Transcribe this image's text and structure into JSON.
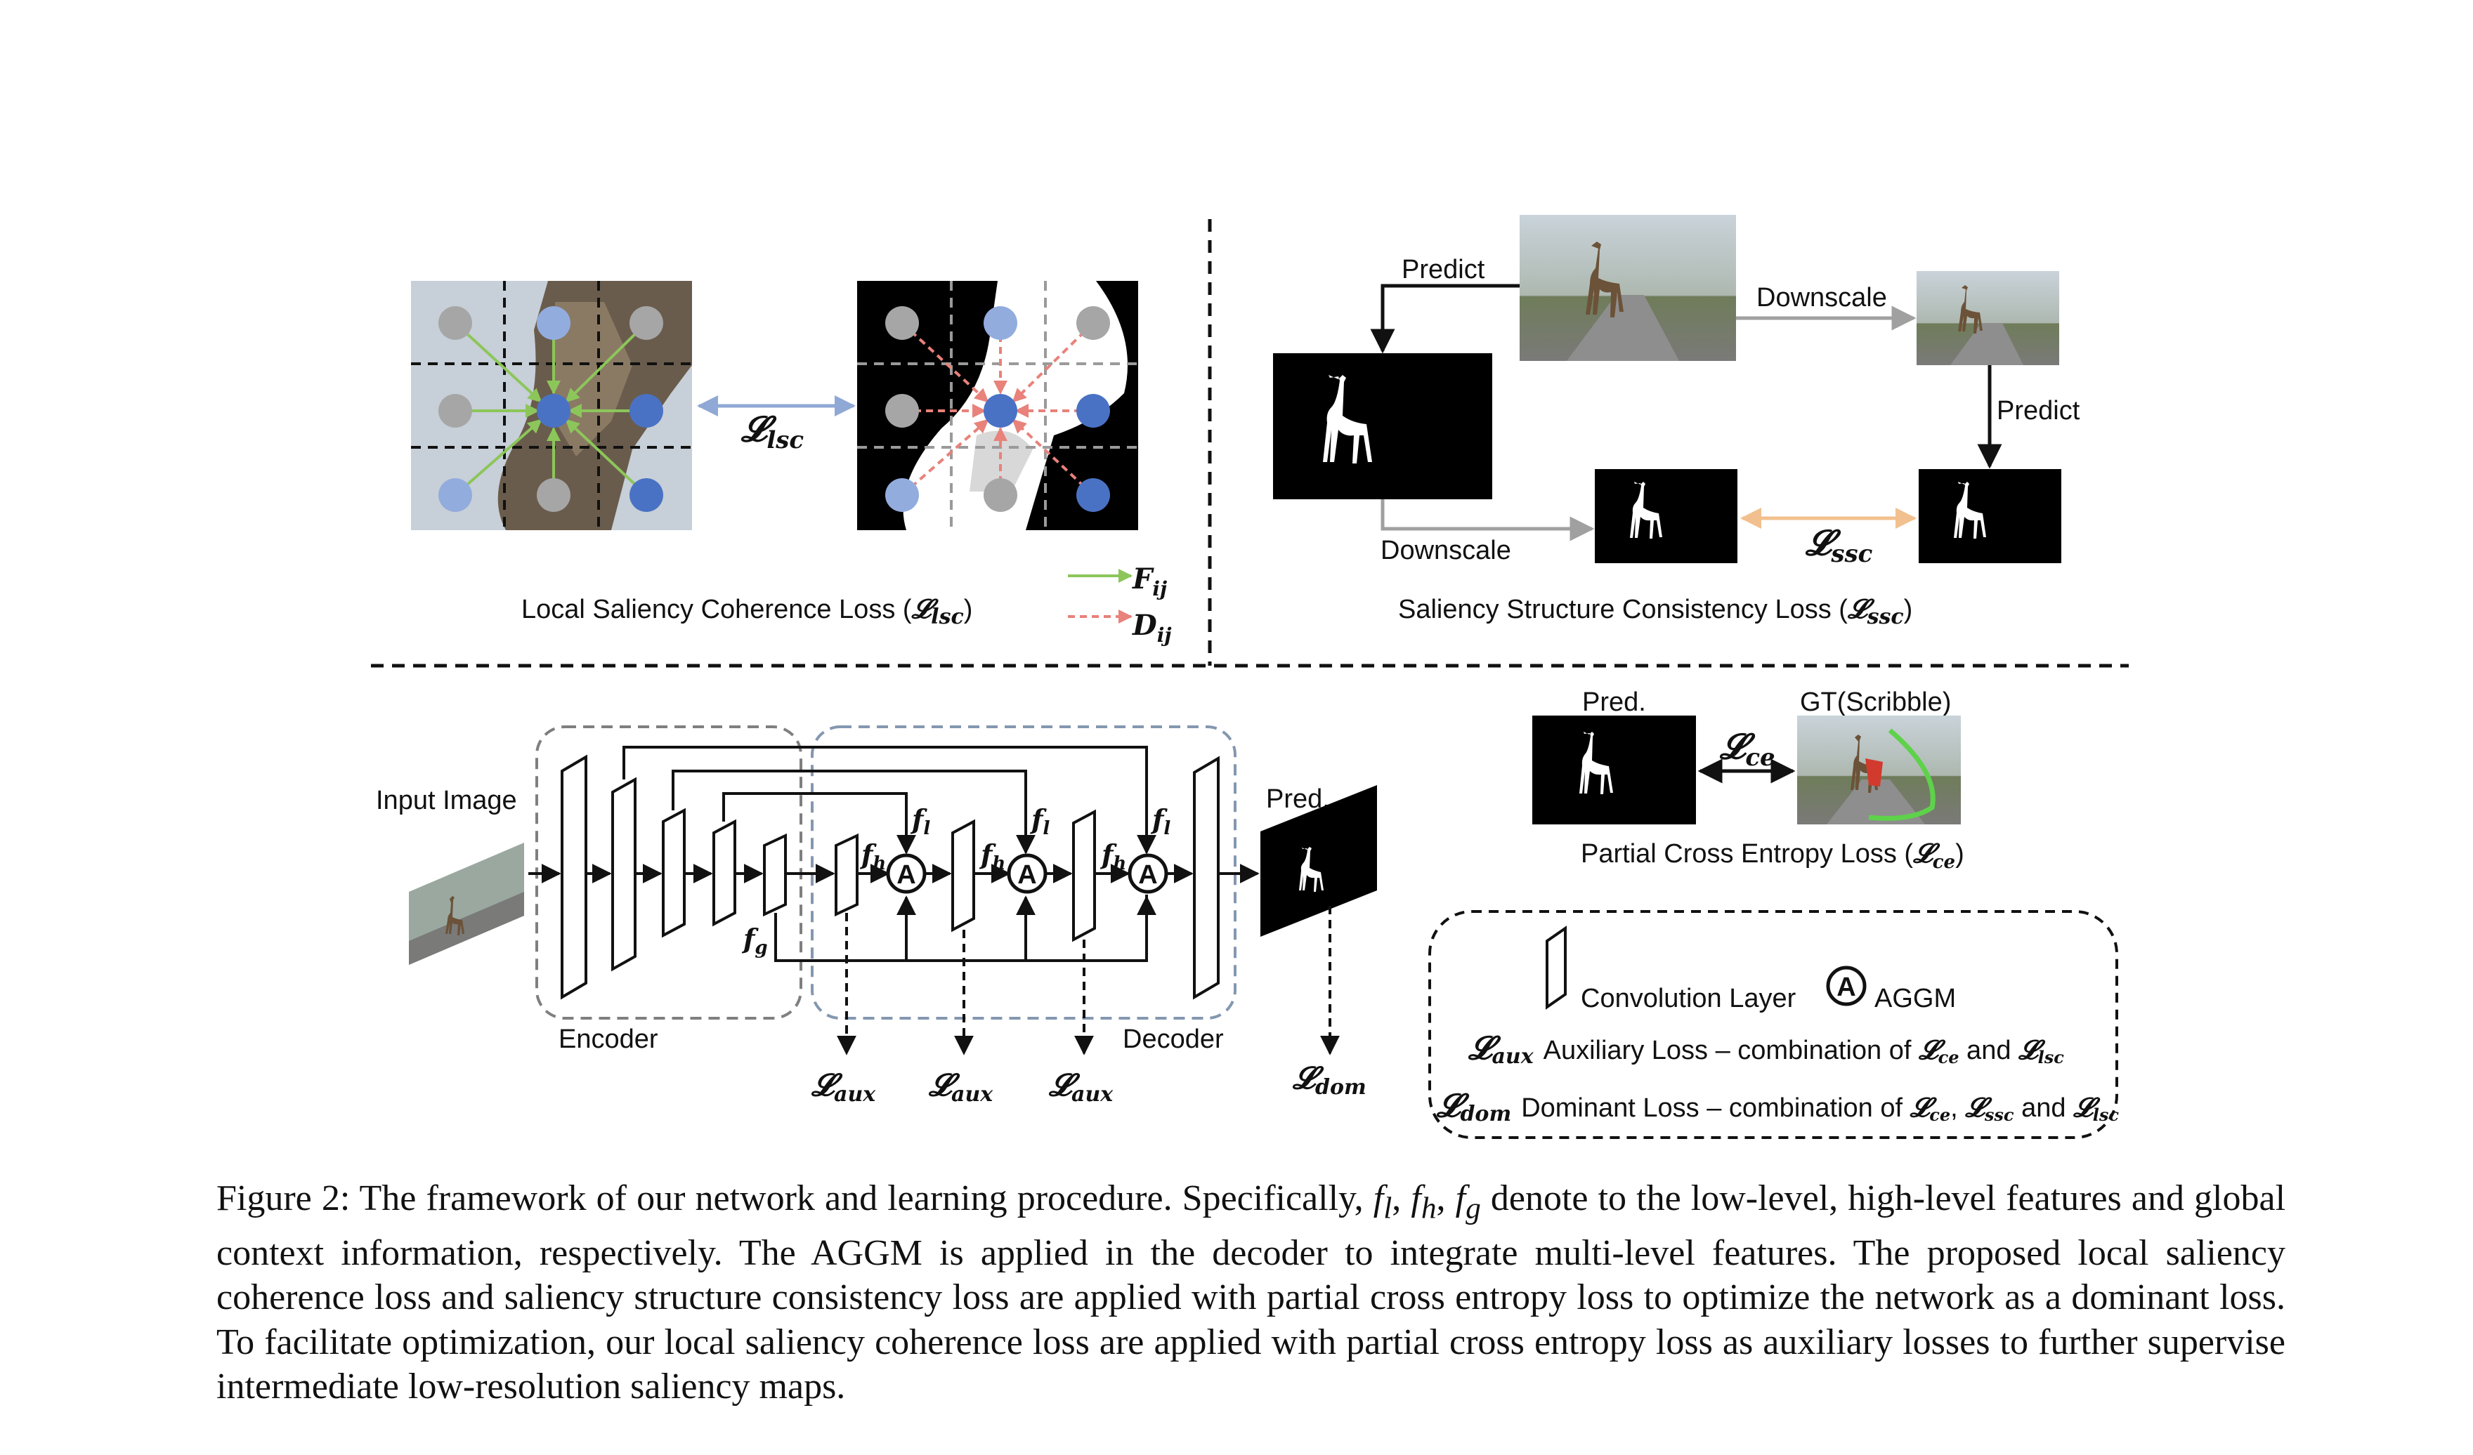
{
  "figure": {
    "lsc_panel": {
      "title_prefix": "Local Saliency Coherence Loss (",
      "title_loss": "𝓛",
      "title_sub": "lsc",
      "title_suffix": ")",
      "link_loss": "𝓛",
      "link_sub": "lsc",
      "legend_f": "F",
      "legend_f_sub": "ij",
      "legend_d": "D",
      "legend_d_sub": "ij"
    },
    "ssc_panel": {
      "title_prefix": "Saliency Structure Consistency Loss (",
      "title_loss": "𝓛",
      "title_sub": "ssc",
      "title_suffix": ")",
      "predict_top": "Predict",
      "downscale_top": "Downscale",
      "predict_right": "Predict",
      "downscale_bottom": "Downscale",
      "link_loss": "𝓛",
      "link_sub": "ssc"
    },
    "network": {
      "input_label": "Input Image",
      "encoder_label": "Encoder",
      "decoder_label": "Decoder",
      "pred_label": "Pred.",
      "f_g": "f",
      "f_g_sub": "g",
      "f_l": "f",
      "f_l_sub": "l",
      "f_h": "f",
      "f_h_sub": "h",
      "aggm_symbol": "A",
      "aux_loss": "𝓛",
      "aux_sub": "aux",
      "dom_loss": "𝓛",
      "dom_sub": "dom"
    },
    "ce_panel": {
      "pred_label": "Pred.",
      "gt_label": "GT(Scribble)",
      "link_loss": "𝓛",
      "link_sub": "ce",
      "title_prefix": "Partial Cross Entropy Loss (",
      "title_loss": "𝓛",
      "title_sub": "ce",
      "title_suffix": ")"
    },
    "legend": {
      "conv_label": "Convolution Layer",
      "aggm_symbol": "A",
      "aggm_label": "AGGM",
      "aux_symbol": "𝓛",
      "aux_sub": "aux",
      "aux_text": "Auxiliary Loss – combination of ",
      "aux_l1": "𝓛",
      "aux_l1_sub": "ce",
      "aux_and": " and ",
      "aux_l2": "𝓛",
      "aux_l2_sub": "lsc",
      "dom_symbol": "𝓛",
      "dom_sub": "dom",
      "dom_text": "Dominant Loss – combination of ",
      "dom_l1": "𝓛",
      "dom_l1_sub": "ce",
      "dom_comma": ", ",
      "dom_l2": "𝓛",
      "dom_l2_sub": "ssc",
      "dom_and": " and ",
      "dom_l3": "𝓛",
      "dom_l3_sub": "lsc"
    },
    "colors": {
      "green_arrow": "#8cc65a",
      "red_dash": "#e8827a",
      "blue_link": "#8fa8d6",
      "orange_link": "#f2c08e",
      "node_dark": "#4a72c4",
      "node_light": "#93acde",
      "node_gray": "#a6a6a6",
      "box_gray": "#7f7f7f",
      "box_blue": "#8497b0"
    }
  },
  "caption": {
    "p1": "Figure 2: The framework of our network and learning procedure. Specifically, ",
    "fl": "f",
    "fl_sub": "l",
    "sep1": ", ",
    "fh": "f",
    "fh_sub": "h",
    "sep2": ", ",
    "fg": "f",
    "fg_sub": "g",
    "p2": " denote to the low-level, high-level features and global context information, respectively. The AGGM is applied in the decoder to integrate multi-level features. The proposed local saliency coherence loss and saliency structure consistency loss are applied with partial cross entropy loss to optimize the network as a dominant loss. To facilitate optimization, our local saliency coherence loss are applied with partial cross entropy loss as auxiliary losses to further supervise intermediate low-resolution saliency maps."
  }
}
